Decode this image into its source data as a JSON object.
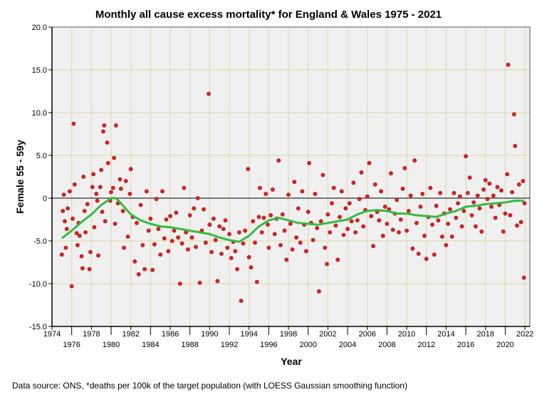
{
  "chart_data": {
    "type": "scatter",
    "title": "Monthly all cause excess mortality* for England & Wales 1975 - 2021",
    "xlabel": "Year",
    "ylabel": "Female 55 - 59y",
    "footnote": "Data source: ONS, *deaths per 100k of the target population (with LOESS Gaussian smoothing function)",
    "xlim": [
      1974,
      2022.5
    ],
    "ylim": [
      -15,
      20
    ],
    "x_ticks": [
      1974,
      1976,
      1978,
      1980,
      1982,
      1984,
      1986,
      1988,
      1990,
      1992,
      1994,
      1996,
      1998,
      2000,
      2002,
      2004,
      2006,
      2008,
      2010,
      2012,
      2014,
      2016,
      2018,
      2020,
      2022
    ],
    "y_ticks": [
      "20.0",
      "15.0",
      "10.0",
      "5.0",
      "0",
      "-5.0",
      "-10.0",
      "-15.0"
    ],
    "y_tick_values": [
      20,
      15,
      10,
      5,
      0,
      -5,
      -10,
      -15
    ],
    "grid": true,
    "reference_line_y": 0,
    "colors": {
      "points": "#e02020",
      "point_edge": "#9a1010",
      "loess": "#33bb44",
      "grid": "#e0dcb0",
      "plot_bg": "#f0f0f0"
    },
    "points": [
      [
        1975.0,
        -6.6
      ],
      [
        1975.1,
        -1.5
      ],
      [
        1975.2,
        0.4
      ],
      [
        1975.3,
        -2.7
      ],
      [
        1975.4,
        -5.8
      ],
      [
        1975.5,
        -3.6
      ],
      [
        1975.6,
        -1.2
      ],
      [
        1975.8,
        0.8
      ],
      [
        1976.0,
        -10.3
      ],
      [
        1976.1,
        -2.4
      ],
      [
        1976.2,
        8.7
      ],
      [
        1976.3,
        1.6
      ],
      [
        1976.5,
        -4.1
      ],
      [
        1976.6,
        -5.5
      ],
      [
        1976.7,
        -2.9
      ],
      [
        1976.8,
        -4.4
      ],
      [
        1977.0,
        -6.8
      ],
      [
        1977.1,
        -8.2
      ],
      [
        1977.2,
        2.5
      ],
      [
        1977.3,
        -1.5
      ],
      [
        1977.4,
        -4.0
      ],
      [
        1977.6,
        -0.7
      ],
      [
        1977.8,
        -8.3
      ],
      [
        1977.9,
        -6.3
      ],
      [
        1978.1,
        1.3
      ],
      [
        1978.2,
        2.8
      ],
      [
        1978.3,
        -3.4
      ],
      [
        1978.5,
        0.5
      ],
      [
        1978.6,
        -0.3
      ],
      [
        1978.7,
        -6.7
      ],
      [
        1978.9,
        1.3
      ],
      [
        1979.0,
        3.3
      ],
      [
        1979.1,
        -1.6
      ],
      [
        1979.2,
        7.8
      ],
      [
        1979.3,
        8.5
      ],
      [
        1979.4,
        -2.7
      ],
      [
        1979.6,
        6.5
      ],
      [
        1979.7,
        4.1
      ],
      [
        1979.9,
        -0.3
      ],
      [
        1980.0,
        0.7
      ],
      [
        1980.2,
        1.2
      ],
      [
        1980.3,
        4.7
      ],
      [
        1980.4,
        -3.0
      ],
      [
        1980.5,
        8.5
      ],
      [
        1980.7,
        -0.6
      ],
      [
        1980.9,
        2.2
      ],
      [
        1981.0,
        1.1
      ],
      [
        1981.2,
        -1.5
      ],
      [
        1981.3,
        -5.8
      ],
      [
        1981.5,
        2.0
      ],
      [
        1981.7,
        -4.5
      ],
      [
        1981.9,
        0.5
      ],
      [
        1982.0,
        3.4
      ],
      [
        1982.2,
        -2.2
      ],
      [
        1982.4,
        -7.4
      ],
      [
        1982.6,
        -2.9
      ],
      [
        1982.8,
        -8.9
      ],
      [
        1983.0,
        -0.8
      ],
      [
        1983.2,
        -5.5
      ],
      [
        1983.4,
        -8.3
      ],
      [
        1983.6,
        0.8
      ],
      [
        1983.8,
        -3.8
      ],
      [
        1984.0,
        -2.4
      ],
      [
        1984.2,
        -8.4
      ],
      [
        1984.4,
        -5.4
      ],
      [
        1984.6,
        -0.1
      ],
      [
        1984.8,
        -3.6
      ],
      [
        1985.0,
        -6.6
      ],
      [
        1985.2,
        0.8
      ],
      [
        1985.4,
        -4.7
      ],
      [
        1985.6,
        -2.5
      ],
      [
        1985.8,
        -6.2
      ],
      [
        1986.0,
        -2.1
      ],
      [
        1986.2,
        -5.0
      ],
      [
        1986.4,
        -3.8
      ],
      [
        1986.6,
        -1.7
      ],
      [
        1986.8,
        -4.6
      ],
      [
        1987.0,
        -10.0
      ],
      [
        1987.2,
        -5.3
      ],
      [
        1987.4,
        1.2
      ],
      [
        1987.6,
        -4.0
      ],
      [
        1987.8,
        -6.0
      ],
      [
        1988.0,
        -2.0
      ],
      [
        1988.2,
        -4.6
      ],
      [
        1988.4,
        -1.2
      ],
      [
        1988.6,
        -5.7
      ],
      [
        1988.8,
        0.0
      ],
      [
        1989.0,
        -9.9
      ],
      [
        1989.2,
        -3.8
      ],
      [
        1989.4,
        -1.3
      ],
      [
        1989.6,
        -5.2
      ],
      [
        1989.9,
        12.2
      ],
      [
        1990.0,
        -3.1
      ],
      [
        1990.2,
        -6.3
      ],
      [
        1990.4,
        -2.4
      ],
      [
        1990.6,
        -4.9
      ],
      [
        1990.8,
        -9.7
      ],
      [
        1991.0,
        -3.3
      ],
      [
        1991.2,
        -6.5
      ],
      [
        1991.4,
        -3.6
      ],
      [
        1991.6,
        -2.6
      ],
      [
        1991.8,
        -5.8
      ],
      [
        1992.0,
        -4.2
      ],
      [
        1992.2,
        -7.0
      ],
      [
        1992.4,
        -5.1
      ],
      [
        1992.6,
        -6.2
      ],
      [
        1992.8,
        -8.3
      ],
      [
        1993.0,
        -4.0
      ],
      [
        1993.2,
        -12.0
      ],
      [
        1993.4,
        -5.3
      ],
      [
        1993.6,
        -3.8
      ],
      [
        1993.9,
        3.4
      ],
      [
        1994.0,
        -6.9
      ],
      [
        1994.2,
        -8.1
      ],
      [
        1994.4,
        -2.7
      ],
      [
        1994.6,
        -5.2
      ],
      [
        1994.8,
        -9.8
      ],
      [
        1995.0,
        -2.2
      ],
      [
        1995.1,
        1.2
      ],
      [
        1995.3,
        -4.0
      ],
      [
        1995.5,
        -2.3
      ],
      [
        1995.7,
        0.5
      ],
      [
        1995.9,
        -3.1
      ],
      [
        1996.0,
        -5.8
      ],
      [
        1996.2,
        -2.0
      ],
      [
        1996.4,
        1.0
      ],
      [
        1996.6,
        -4.2
      ],
      [
        1996.8,
        -2.4
      ],
      [
        1997.0,
        4.4
      ],
      [
        1997.2,
        -5.5
      ],
      [
        1997.4,
        -1.9
      ],
      [
        1997.6,
        -3.8
      ],
      [
        1997.8,
        -7.2
      ],
      [
        1998.0,
        0.4
      ],
      [
        1998.2,
        -3.0
      ],
      [
        1998.4,
        -6.0
      ],
      [
        1998.6,
        1.9
      ],
      [
        1998.8,
        -4.6
      ],
      [
        1999.0,
        -1.2
      ],
      [
        1999.2,
        -5.2
      ],
      [
        1999.4,
        0.8
      ],
      [
        1999.6,
        -3.1
      ],
      [
        1999.8,
        -6.2
      ],
      [
        2000.0,
        -1.6
      ],
      [
        2000.1,
        4.1
      ],
      [
        2000.3,
        -2.9
      ],
      [
        2000.5,
        -4.9
      ],
      [
        2000.7,
        0.5
      ],
      [
        2000.9,
        -3.5
      ],
      [
        2001.1,
        -10.9
      ],
      [
        2001.3,
        -2.7
      ],
      [
        2001.5,
        2.7
      ],
      [
        2001.7,
        -5.8
      ],
      [
        2001.9,
        -7.7
      ],
      [
        2002.0,
        -1.9
      ],
      [
        2002.2,
        -4.0
      ],
      [
        2002.4,
        -0.6
      ],
      [
        2002.6,
        1.2
      ],
      [
        2002.8,
        -3.2
      ],
      [
        2003.0,
        -7.2
      ],
      [
        2003.2,
        -2.2
      ],
      [
        2003.4,
        0.8
      ],
      [
        2003.6,
        -4.3
      ],
      [
        2003.8,
        -1.2
      ],
      [
        2004.0,
        -3.6
      ],
      [
        2004.2,
        -0.6
      ],
      [
        2004.4,
        -2.7
      ],
      [
        2004.6,
        1.8
      ],
      [
        2004.8,
        -4.0
      ],
      [
        2005.0,
        -2.6
      ],
      [
        2005.2,
        -0.1
      ],
      [
        2005.4,
        3.0
      ],
      [
        2005.6,
        -3.3
      ],
      [
        2005.8,
        -1.4
      ],
      [
        2006.0,
        0.2
      ],
      [
        2006.2,
        4.1
      ],
      [
        2006.4,
        -2.1
      ],
      [
        2006.6,
        -5.6
      ],
      [
        2006.8,
        1.6
      ],
      [
        2007.0,
        -1.6
      ],
      [
        2007.2,
        -2.6
      ],
      [
        2007.4,
        0.8
      ],
      [
        2007.6,
        -4.4
      ],
      [
        2007.8,
        -1.0
      ],
      [
        2008.0,
        -3.0
      ],
      [
        2008.2,
        -1.3
      ],
      [
        2008.4,
        2.9
      ],
      [
        2008.6,
        -3.7
      ],
      [
        2008.8,
        -1.8
      ],
      [
        2009.0,
        -0.2
      ],
      [
        2009.2,
        -4.0
      ],
      [
        2009.4,
        -2.5
      ],
      [
        2009.6,
        1.1
      ],
      [
        2009.8,
        3.5
      ],
      [
        2010.0,
        -3.8
      ],
      [
        2010.2,
        -1.5
      ],
      [
        2010.4,
        0.3
      ],
      [
        2010.6,
        -5.9
      ],
      [
        2010.8,
        4.4
      ],
      [
        2011.0,
        -2.9
      ],
      [
        2011.2,
        -6.5
      ],
      [
        2011.4,
        -1.0
      ],
      [
        2011.6,
        0.5
      ],
      [
        2011.8,
        -4.4
      ],
      [
        2012.0,
        -7.1
      ],
      [
        2012.2,
        -2.2
      ],
      [
        2012.4,
        1.2
      ],
      [
        2012.6,
        -3.1
      ],
      [
        2012.8,
        -6.6
      ],
      [
        2013.0,
        -0.9
      ],
      [
        2013.2,
        -2.6
      ],
      [
        2013.4,
        0.6
      ],
      [
        2013.6,
        -4.5
      ],
      [
        2013.8,
        -1.8
      ],
      [
        2014.0,
        -5.5
      ],
      [
        2014.2,
        -3.0
      ],
      [
        2014.4,
        -1.3
      ],
      [
        2014.6,
        -4.5
      ],
      [
        2014.8,
        0.6
      ],
      [
        2015.0,
        -2.3
      ],
      [
        2015.2,
        -0.6
      ],
      [
        2015.4,
        0.2
      ],
      [
        2015.6,
        -3.3
      ],
      [
        2015.8,
        -1.5
      ],
      [
        2016.0,
        4.9
      ],
      [
        2016.2,
        0.6
      ],
      [
        2016.4,
        2.4
      ],
      [
        2016.6,
        -2.0
      ],
      [
        2016.8,
        -0.5
      ],
      [
        2017.0,
        -3.3
      ],
      [
        2017.2,
        0.3
      ],
      [
        2017.4,
        -1.2
      ],
      [
        2017.6,
        -3.9
      ],
      [
        2017.8,
        1.0
      ],
      [
        2018.0,
        2.1
      ],
      [
        2018.2,
        -0.1
      ],
      [
        2018.4,
        1.7
      ],
      [
        2018.6,
        -1.0
      ],
      [
        2018.8,
        0.3
      ],
      [
        2019.0,
        -2.3
      ],
      [
        2019.2,
        1.3
      ],
      [
        2019.4,
        -0.8
      ],
      [
        2019.6,
        0.9
      ],
      [
        2019.8,
        -3.9
      ],
      [
        2020.0,
        -1.8
      ],
      [
        2020.2,
        2.8
      ],
      [
        2020.3,
        15.6
      ],
      [
        2020.5,
        -2.0
      ],
      [
        2020.7,
        0.7
      ],
      [
        2020.9,
        9.8
      ],
      [
        2021.0,
        6.1
      ],
      [
        2021.2,
        -3.2
      ],
      [
        2021.4,
        1.6
      ],
      [
        2021.6,
        -2.8
      ],
      [
        2021.8,
        2.0
      ],
      [
        2021.9,
        -9.3
      ],
      [
        2021.95,
        -0.6
      ]
    ],
    "loess": [
      [
        1975,
        -4.7
      ],
      [
        1976,
        -3.8
      ],
      [
        1977,
        -2.8
      ],
      [
        1978,
        -1.9
      ],
      [
        1979,
        -0.8
      ],
      [
        1980,
        0
      ],
      [
        1980.5,
        0
      ],
      [
        1981,
        -0.6
      ],
      [
        1982,
        -1.9
      ],
      [
        1983,
        -2.6
      ],
      [
        1984,
        -3.0
      ],
      [
        1985,
        -3.3
      ],
      [
        1986,
        -3.4
      ],
      [
        1987,
        -3.6
      ],
      [
        1988,
        -3.8
      ],
      [
        1989,
        -4.0
      ],
      [
        1990,
        -4.2
      ],
      [
        1991,
        -4.6
      ],
      [
        1992,
        -4.9
      ],
      [
        1993,
        -5.1
      ],
      [
        1994,
        -4.4
      ],
      [
        1995,
        -3.3
      ],
      [
        1996,
        -2.6
      ],
      [
        1997,
        -2.3
      ],
      [
        1998,
        -2.6
      ],
      [
        1999,
        -2.9
      ],
      [
        2000,
        -3.0
      ],
      [
        2001,
        -3.1
      ],
      [
        2002,
        -2.9
      ],
      [
        2003,
        -2.7
      ],
      [
        2004,
        -2.5
      ],
      [
        2005,
        -1.9
      ],
      [
        2006,
        -1.5
      ],
      [
        2007,
        -1.4
      ],
      [
        2008,
        -1.5
      ],
      [
        2009,
        -1.8
      ],
      [
        2010,
        -1.8
      ],
      [
        2011,
        -2.0
      ],
      [
        2012,
        -2.1
      ],
      [
        2013,
        -2.2
      ],
      [
        2014,
        -1.8
      ],
      [
        2015,
        -1.5
      ],
      [
        2016,
        -1.0
      ],
      [
        2017,
        -0.9
      ],
      [
        2018,
        -0.7
      ],
      [
        2019,
        -0.6
      ],
      [
        2020,
        -0.5
      ],
      [
        2021,
        -0.3
      ],
      [
        2021.9,
        -0.3
      ]
    ]
  }
}
